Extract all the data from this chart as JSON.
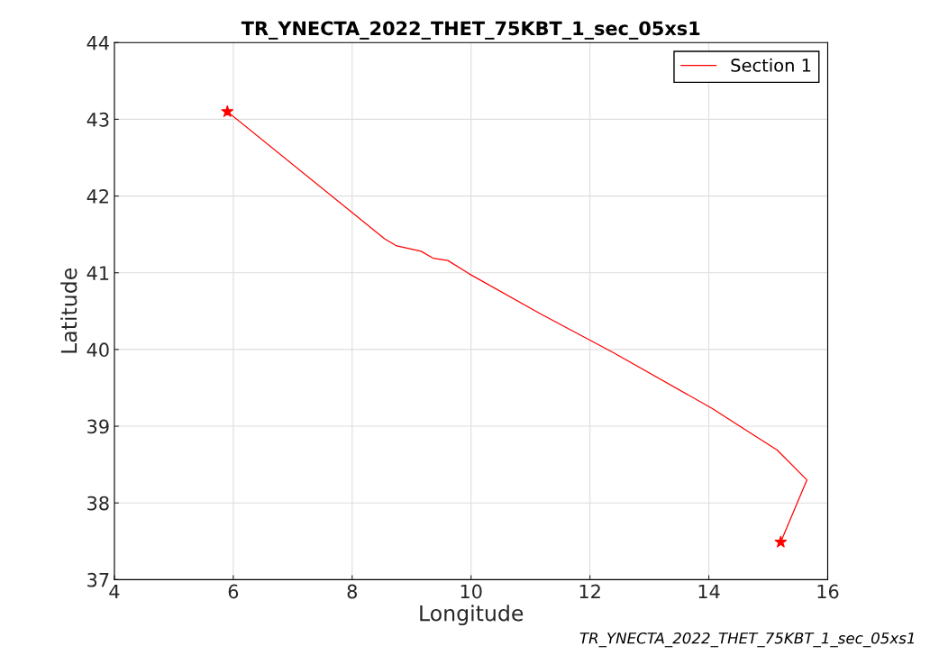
{
  "chart_data": {
    "type": "line",
    "title": "TR_YNECTA_2022_THET_75KBT_1_sec_05xs1",
    "xlabel": "Longitude",
    "ylabel": "Latitude",
    "series": [
      {
        "name": "Section 1",
        "color": "#ff0000",
        "x": [
          5.9,
          8.55,
          8.75,
          9.16,
          9.36,
          9.61,
          9.96,
          11.18,
          12.39,
          14.06,
          14.52,
          15.15,
          15.65,
          15.21
        ],
        "values": [
          43.1,
          41.44,
          41.35,
          41.28,
          41.19,
          41.16,
          40.99,
          40.46,
          39.96,
          39.23,
          39.0,
          38.69,
          38.3,
          37.49
        ]
      },
      {
        "type": "scatter",
        "marker": "star",
        "color": "#ff0000",
        "x": [
          5.9,
          15.21
        ],
        "values": [
          43.1,
          37.49
        ]
      }
    ],
    "xlim": [
      4,
      16
    ],
    "ylim": [
      37,
      44
    ],
    "xticks": [
      4,
      6,
      8,
      10,
      12,
      14,
      16
    ],
    "yticks": [
      37,
      38,
      39,
      40,
      41,
      42,
      43,
      44
    ],
    "grid": true,
    "legend": "top right",
    "annotations": [
      "TR_YNECTA_2022_THET_75KBT_1_sec_05xs1"
    ]
  }
}
